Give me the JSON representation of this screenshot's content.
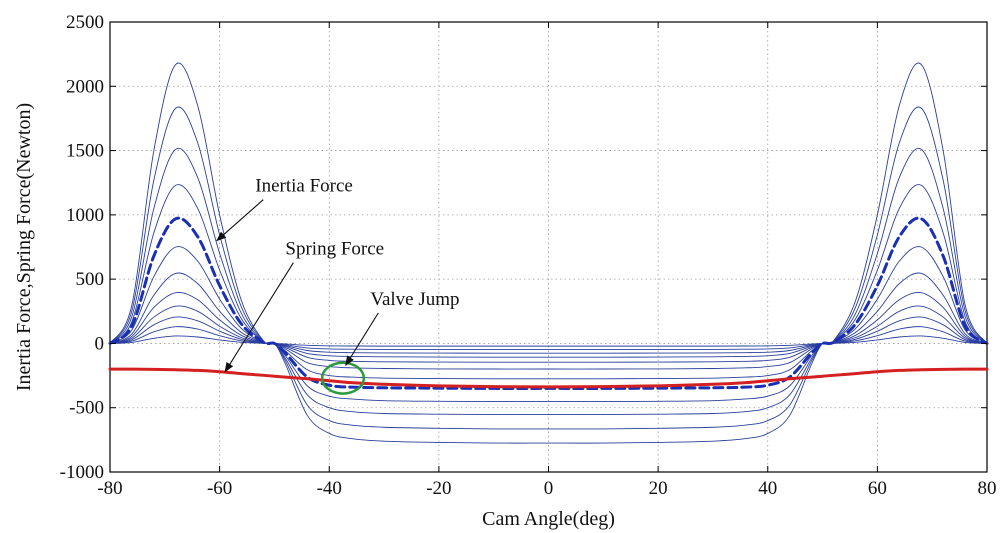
{
  "chart_data": {
    "type": "line",
    "title": "",
    "xlabel": "Cam Angle(deg)",
    "ylabel": "Inertia Force,Spring Force(Newton)",
    "xlim": [
      -80,
      80
    ],
    "ylim": [
      -1000,
      2500
    ],
    "xticks": [
      -80,
      -60,
      -40,
      -20,
      0,
      20,
      40,
      60,
      80
    ],
    "yticks": [
      -1000,
      -500,
      0,
      500,
      1000,
      1500,
      2000,
      2500
    ],
    "xtick_labels": [
      "-80",
      "-60",
      "-40",
      "-20",
      "0",
      "20",
      "40",
      "60",
      "80"
    ],
    "ytick_labels": [
      "-1000",
      "-500",
      "0",
      "500",
      "1000",
      "1500",
      "2000",
      "2500"
    ],
    "grid": true,
    "x": [
      -80,
      -76,
      -72,
      -68,
      -64,
      -60,
      -56,
      -52,
      -50,
      -48,
      -44,
      -40,
      -36,
      -30,
      -20,
      -10,
      0,
      10,
      20,
      30,
      36,
      40,
      44,
      48,
      50,
      52,
      56,
      60,
      64,
      68,
      72,
      76,
      80
    ],
    "series": [
      {
        "style": "thin",
        "color": "#2a3f9c",
        "values": [
          0,
          300,
          1500,
          2170,
          1850,
          1000,
          330,
          20,
          0,
          -160,
          -560,
          -700,
          -740,
          -760,
          -770,
          -775,
          -775,
          -775,
          -770,
          -760,
          -740,
          -700,
          -560,
          -160,
          0,
          20,
          330,
          1000,
          1850,
          2170,
          1500,
          300,
          0
        ]
      },
      {
        "style": "thin",
        "color": "#2a3f9c",
        "values": [
          0,
          255,
          1270,
          1830,
          1560,
          845,
          280,
          17,
          0,
          -135,
          -480,
          -600,
          -635,
          -652,
          -660,
          -665,
          -665,
          -665,
          -660,
          -652,
          -635,
          -600,
          -480,
          -135,
          0,
          17,
          280,
          845,
          1560,
          1830,
          1270,
          255,
          0
        ]
      },
      {
        "style": "thin",
        "color": "#2a3f9c",
        "values": [
          0,
          210,
          1050,
          1510,
          1290,
          700,
          230,
          14,
          0,
          -115,
          -400,
          -500,
          -530,
          -545,
          -550,
          -553,
          -553,
          -553,
          -550,
          -545,
          -530,
          -500,
          -400,
          -115,
          0,
          14,
          230,
          700,
          1290,
          1510,
          1050,
          210,
          0
        ]
      },
      {
        "style": "thin",
        "color": "#2a3f9c",
        "values": [
          0,
          170,
          860,
          1230,
          1050,
          570,
          190,
          12,
          0,
          -95,
          -330,
          -410,
          -432,
          -445,
          -450,
          -452,
          -452,
          -452,
          -450,
          -445,
          -432,
          -410,
          -330,
          -95,
          0,
          12,
          190,
          570,
          1050,
          1230,
          860,
          170,
          0
        ]
      },
      {
        "style": "thin",
        "color": "#2a3f9c",
        "values": [
          0,
          105,
          520,
          750,
          640,
          345,
          115,
          7,
          0,
          -58,
          -205,
          -250,
          -262,
          -270,
          -273,
          -275,
          -275,
          -275,
          -273,
          -270,
          -262,
          -250,
          -205,
          -58,
          0,
          7,
          115,
          345,
          640,
          750,
          520,
          105,
          0
        ]
      },
      {
        "style": "thin",
        "color": "#2a3f9c",
        "values": [
          0,
          75,
          375,
          545,
          465,
          250,
          85,
          5,
          0,
          -42,
          -150,
          -180,
          -190,
          -195,
          -198,
          -199,
          -199,
          -199,
          -198,
          -195,
          -190,
          -180,
          -150,
          -42,
          0,
          5,
          85,
          250,
          465,
          545,
          375,
          75,
          0
        ]
      },
      {
        "style": "thin",
        "color": "#2a3f9c",
        "values": [
          0,
          56,
          280,
          395,
          340,
          183,
          62,
          4,
          0,
          -31,
          -108,
          -132,
          -139,
          -143,
          -145,
          -146,
          -146,
          -146,
          -145,
          -143,
          -139,
          -132,
          -108,
          -31,
          0,
          4,
          62,
          183,
          340,
          395,
          280,
          56,
          0
        ]
      },
      {
        "style": "thin",
        "color": "#2a3f9c",
        "values": [
          0,
          41,
          205,
          290,
          250,
          134,
          45,
          3,
          0,
          -22,
          -78,
          -96,
          -101,
          -104,
          -106,
          -107,
          -107,
          -107,
          -106,
          -104,
          -101,
          -96,
          -78,
          -22,
          0,
          3,
          45,
          134,
          250,
          290,
          205,
          41,
          0
        ]
      },
      {
        "style": "thin",
        "color": "#2a3f9c",
        "values": [
          0,
          29,
          145,
          205,
          176,
          95,
          32,
          2,
          0,
          -16,
          -55,
          -68,
          -72,
          -74,
          -75,
          -76,
          -76,
          -76,
          -75,
          -74,
          -72,
          -68,
          -55,
          -16,
          0,
          2,
          32,
          95,
          176,
          205,
          145,
          29,
          0
        ]
      },
      {
        "style": "thin",
        "color": "#2a3f9c",
        "values": [
          0,
          18,
          90,
          130,
          112,
          60,
          20,
          1,
          0,
          -10,
          -35,
          -43,
          -45,
          -47,
          -48,
          -48,
          -48,
          -48,
          -48,
          -47,
          -45,
          -43,
          -35,
          -10,
          0,
          1,
          20,
          60,
          112,
          130,
          90,
          18,
          0
        ]
      },
      {
        "style": "thin",
        "color": "#2a3f9c",
        "values": [
          0,
          8,
          40,
          58,
          50,
          27,
          9,
          1,
          0,
          -4,
          -15,
          -19,
          -20,
          -21,
          -21,
          -21,
          -21,
          -21,
          -21,
          -21,
          -20,
          -19,
          -15,
          -4,
          0,
          1,
          9,
          27,
          50,
          58,
          40,
          8,
          0
        ]
      },
      {
        "style": "dashed",
        "color": "#1a2fb4",
        "values": [
          0,
          135,
          680,
          970,
          830,
          450,
          150,
          9,
          0,
          -75,
          -262,
          -325,
          -340,
          -345,
          -348,
          -350,
          -350,
          -350,
          -348,
          -345,
          -340,
          -325,
          -262,
          -75,
          0,
          9,
          150,
          450,
          830,
          970,
          680,
          135,
          0
        ]
      },
      {
        "style": "spring",
        "color": "#d42020",
        "values": [
          -200,
          -200,
          -202,
          -205,
          -210,
          -220,
          -235,
          -248,
          -255,
          -262,
          -275,
          -290,
          -305,
          -318,
          -330,
          -336,
          -338,
          -336,
          -330,
          -318,
          -305,
          -290,
          -275,
          -262,
          -255,
          -248,
          -235,
          -220,
          -210,
          -205,
          -202,
          -200,
          -200
        ]
      }
    ],
    "annotations": [
      {
        "text": "Inertia Force",
        "tx": -53.5,
        "ty": 1180,
        "ax": -60.5,
        "ay": 800
      },
      {
        "text": "Spring Force",
        "tx": -48,
        "ty": 690,
        "ax": -59,
        "ay": -220
      },
      {
        "text": "Valve Jump",
        "tx": -32.5,
        "ty": 300,
        "ax": -37,
        "ay": -170
      }
    ],
    "highlight": {
      "shape": "ellipse",
      "color": "#2a9a3a",
      "cx": -37.5,
      "cy": -270,
      "rx": 3.8,
      "ry": 120
    }
  }
}
